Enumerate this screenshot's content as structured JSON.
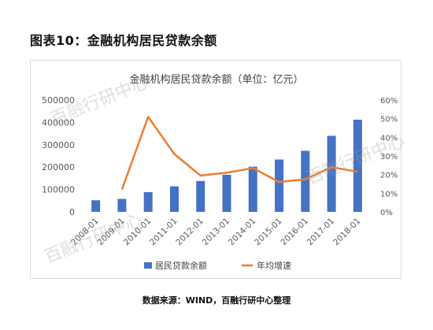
{
  "figure_title": "图表10：金融机构居民贷款余额",
  "source_note": "数据来源：WIND，百融行研中心整理",
  "watermark_text": "百融行研中心",
  "colors": {
    "bar": "#4472C4",
    "line": "#ED7D31",
    "axis_text": "#595959",
    "gridline": "#e6e6e6"
  },
  "chart_data": {
    "type": "bar",
    "title": "金融机构居民贷款余额（单位：亿元）",
    "categories": [
      "2008-01",
      "2009-01",
      "2010-01",
      "2011-01",
      "2012-01",
      "2013-01",
      "2014-01",
      "2015-01",
      "2016-01",
      "2017-01",
      "2018-01"
    ],
    "y_left": {
      "range": [
        0,
        500000
      ],
      "ticks": [
        "0",
        "100000",
        "200000",
        "300000",
        "400000",
        "500000"
      ]
    },
    "y_right": {
      "range": [
        0,
        60
      ],
      "ticks": [
        "0%",
        "10%",
        "20%",
        "30%",
        "40%",
        "50%",
        "60%"
      ]
    },
    "series": [
      {
        "name": "居民贷款余额",
        "type": "bar",
        "axis": "left",
        "values": [
          52000,
          58000,
          88000,
          114000,
          138000,
          166000,
          202000,
          234000,
          273000,
          340000,
          412000
        ]
      },
      {
        "name": "年均增速",
        "type": "line",
        "axis": "right",
        "values": [
          null,
          12,
          51,
          31,
          19.5,
          21,
          23.5,
          16,
          17.5,
          24,
          21.5
        ]
      }
    ],
    "legend_position": "bottom",
    "grid": false
  }
}
